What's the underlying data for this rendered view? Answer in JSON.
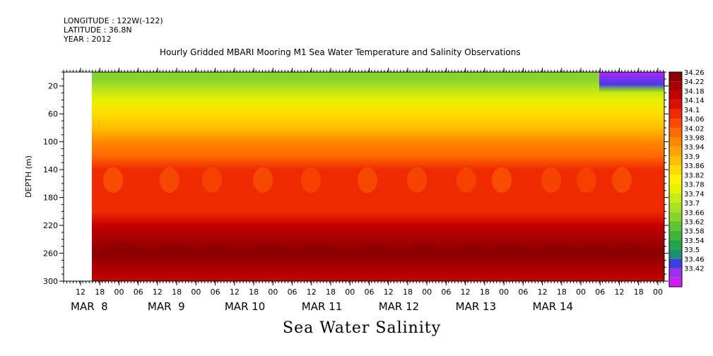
{
  "header": {
    "longitude": "LONGITUDE : 122W(-122)",
    "latitude": "LATITUDE : 36.8N",
    "year": "YEAR : 2012",
    "title": "Hourly Gridded MBARI Mooring M1 Sea Water Temperature and Salinity Observations"
  },
  "chart_data": {
    "type": "heatmap",
    "title": "Hourly Gridded MBARI Mooring M1 Sea Water Temperature and Salinity Observations",
    "xlabel": "Sea Water Salinity",
    "ylabel": "DEPTH (m)",
    "y_inverted": true,
    "ylim": [
      0,
      300
    ],
    "y_ticks": [
      20,
      60,
      100,
      140,
      180,
      220,
      260,
      300
    ],
    "x_hour_ticks": [
      "12",
      "18",
      "00",
      "06",
      "12",
      "18",
      "00",
      "06",
      "12",
      "18",
      "00",
      "06",
      "12",
      "18",
      "00",
      "06",
      "12",
      "18",
      "00",
      "06",
      "12",
      "18",
      "00",
      "06",
      "12",
      "18",
      "00",
      "06",
      "12",
      "18",
      "00"
    ],
    "x_day_labels": [
      "MAR  8",
      "MAR  9",
      "MAR 10",
      "MAR 11",
      "MAR 12",
      "MAR 13",
      "MAR 14"
    ],
    "data_start": "2012-03-08 18:00",
    "data_end": "2012-03-15 00:00",
    "colorbar": {
      "levels": [
        "34.26",
        "34.22",
        "34.18",
        "34.14",
        "34.1",
        "34.06",
        "34.02",
        "33.98",
        "33.94",
        "33.9",
        "33.86",
        "33.82",
        "33.78",
        "33.74",
        "33.7",
        "33.66",
        "33.62",
        "33.58",
        "33.54",
        "33.5",
        "33.46",
        "33.42"
      ],
      "colors": [
        "#8b0000",
        "#a80000",
        "#c40000",
        "#dc0e00",
        "#ef2a00",
        "#ff4a00",
        "#ff6a00",
        "#ff8800",
        "#ffa300",
        "#ffbf00",
        "#ffdc00",
        "#fff200",
        "#e6f200",
        "#c9ec14",
        "#a9e024",
        "#86d42c",
        "#5fc432",
        "#3fb43c",
        "#24a44a",
        "#1e8f70",
        "#3a3fe0",
        "#9a32f0",
        "#d21cff"
      ]
    },
    "salinity_profile_by_depth": {
      "depths": [
        10,
        20,
        40,
        60,
        80,
        100,
        120,
        140,
        160,
        180,
        200,
        220,
        240,
        260,
        280,
        300
      ],
      "values": [
        33.68,
        33.72,
        33.78,
        33.86,
        33.93,
        33.98,
        34.04,
        34.1,
        34.12,
        34.1,
        34.12,
        34.18,
        34.22,
        34.26,
        34.22,
        34.2
      ]
    },
    "low_salinity_pocket": {
      "time": "MAR 14 12-24",
      "depth_range": [
        10,
        30
      ],
      "values_range": [
        33.42,
        33.54
      ]
    }
  }
}
